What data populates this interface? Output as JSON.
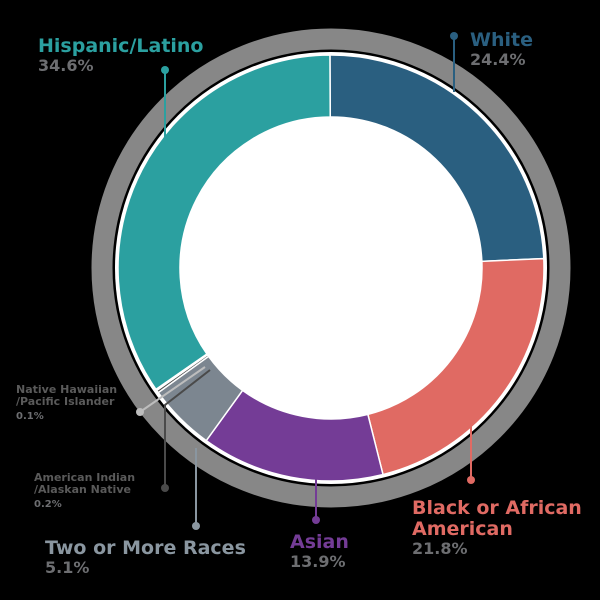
{
  "chart_data": {
    "type": "pie",
    "style": "donut",
    "title": "",
    "categories": [
      "White",
      "Black or African American",
      "Asian",
      "Two or More Races",
      "American Indian /Alaskan Native",
      "Native Hawaiian /Pacific Islander",
      "Hispanic/Latino"
    ],
    "values": [
      24.4,
      21.8,
      13.9,
      5.1,
      0.2,
      0.1,
      34.6
    ],
    "colors": [
      "#2a5f80",
      "#e06a63",
      "#743c96",
      "#7c8690",
      "#4a4a4a",
      "#bdbdbd",
      "#2ba0a0"
    ],
    "unit": "%"
  },
  "labels": {
    "white": {
      "name": "White",
      "pct": "24.4%"
    },
    "black": {
      "name1": "Black or African",
      "name2": "American",
      "pct": "21.8%"
    },
    "asian": {
      "name": "Asian",
      "pct": "13.9%"
    },
    "two": {
      "name": "Two or More Races",
      "pct": "5.1%"
    },
    "aian": {
      "name1": "American Indian",
      "name2": "/Alaskan Native",
      "pct": "0.2%"
    },
    "nhpi": {
      "name1": "Native Hawaiian",
      "name2": "/Pacific Islander",
      "pct": "0.1%"
    },
    "hisp": {
      "name": "Hispanic/Latino",
      "pct": "34.6%"
    }
  },
  "ring_color": "#878787"
}
